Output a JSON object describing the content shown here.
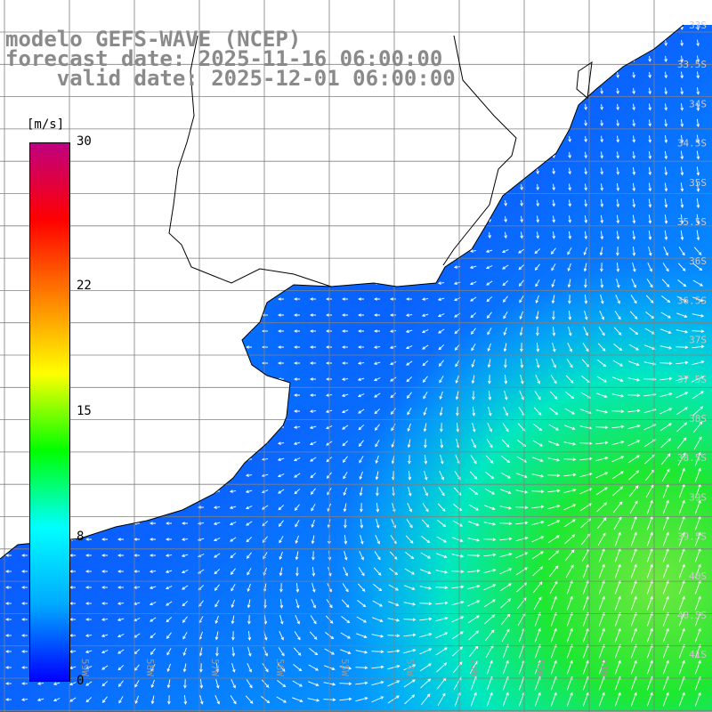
{
  "titles": {
    "line1": "modelo GEFS-WAVE (NCEP)",
    "line2": "forecast date: 2025-11-16 06:00:00",
    "line3": "valid date: 2025-12-01 06:00:00"
  },
  "colorbar": {
    "unit": "[m/s]",
    "ticks": [
      {
        "value": 30,
        "label": "30"
      },
      {
        "value": 22,
        "label": "22"
      },
      {
        "value": 15,
        "label": "15"
      },
      {
        "value": 8,
        "label": "8"
      },
      {
        "value": 0,
        "label": "0"
      }
    ],
    "range": [
      0,
      30
    ],
    "stops": [
      "#0000ff",
      "#00aaff",
      "#00ffff",
      "#00ff00",
      "#ffff00",
      "#ff8000",
      "#ff0000",
      "#c0007f"
    ]
  },
  "map": {
    "lon_labels": [
      "59W",
      "58W",
      "57W",
      "56W",
      "55W",
      "54W",
      "53W",
      "52W",
      "51W"
    ],
    "lat_labels": [
      "33S",
      "33.5S",
      "34S",
      "34.5S",
      "35S",
      "35.5S",
      "36S",
      "36.5S",
      "37S",
      "37.5S",
      "38S",
      "38.5S",
      "39S",
      "39.5S",
      "40S",
      "40.5S",
      "41S"
    ],
    "lon_range": [
      -60.0,
      -49.0
    ],
    "lat_range": [
      -41.5,
      -32.5
    ],
    "grid": true,
    "colors": {
      "land": "#ffffff",
      "coast": "#000000",
      "grid": "#808080",
      "arrow": "#ffffff",
      "title": "#8a8a8a"
    }
  }
}
